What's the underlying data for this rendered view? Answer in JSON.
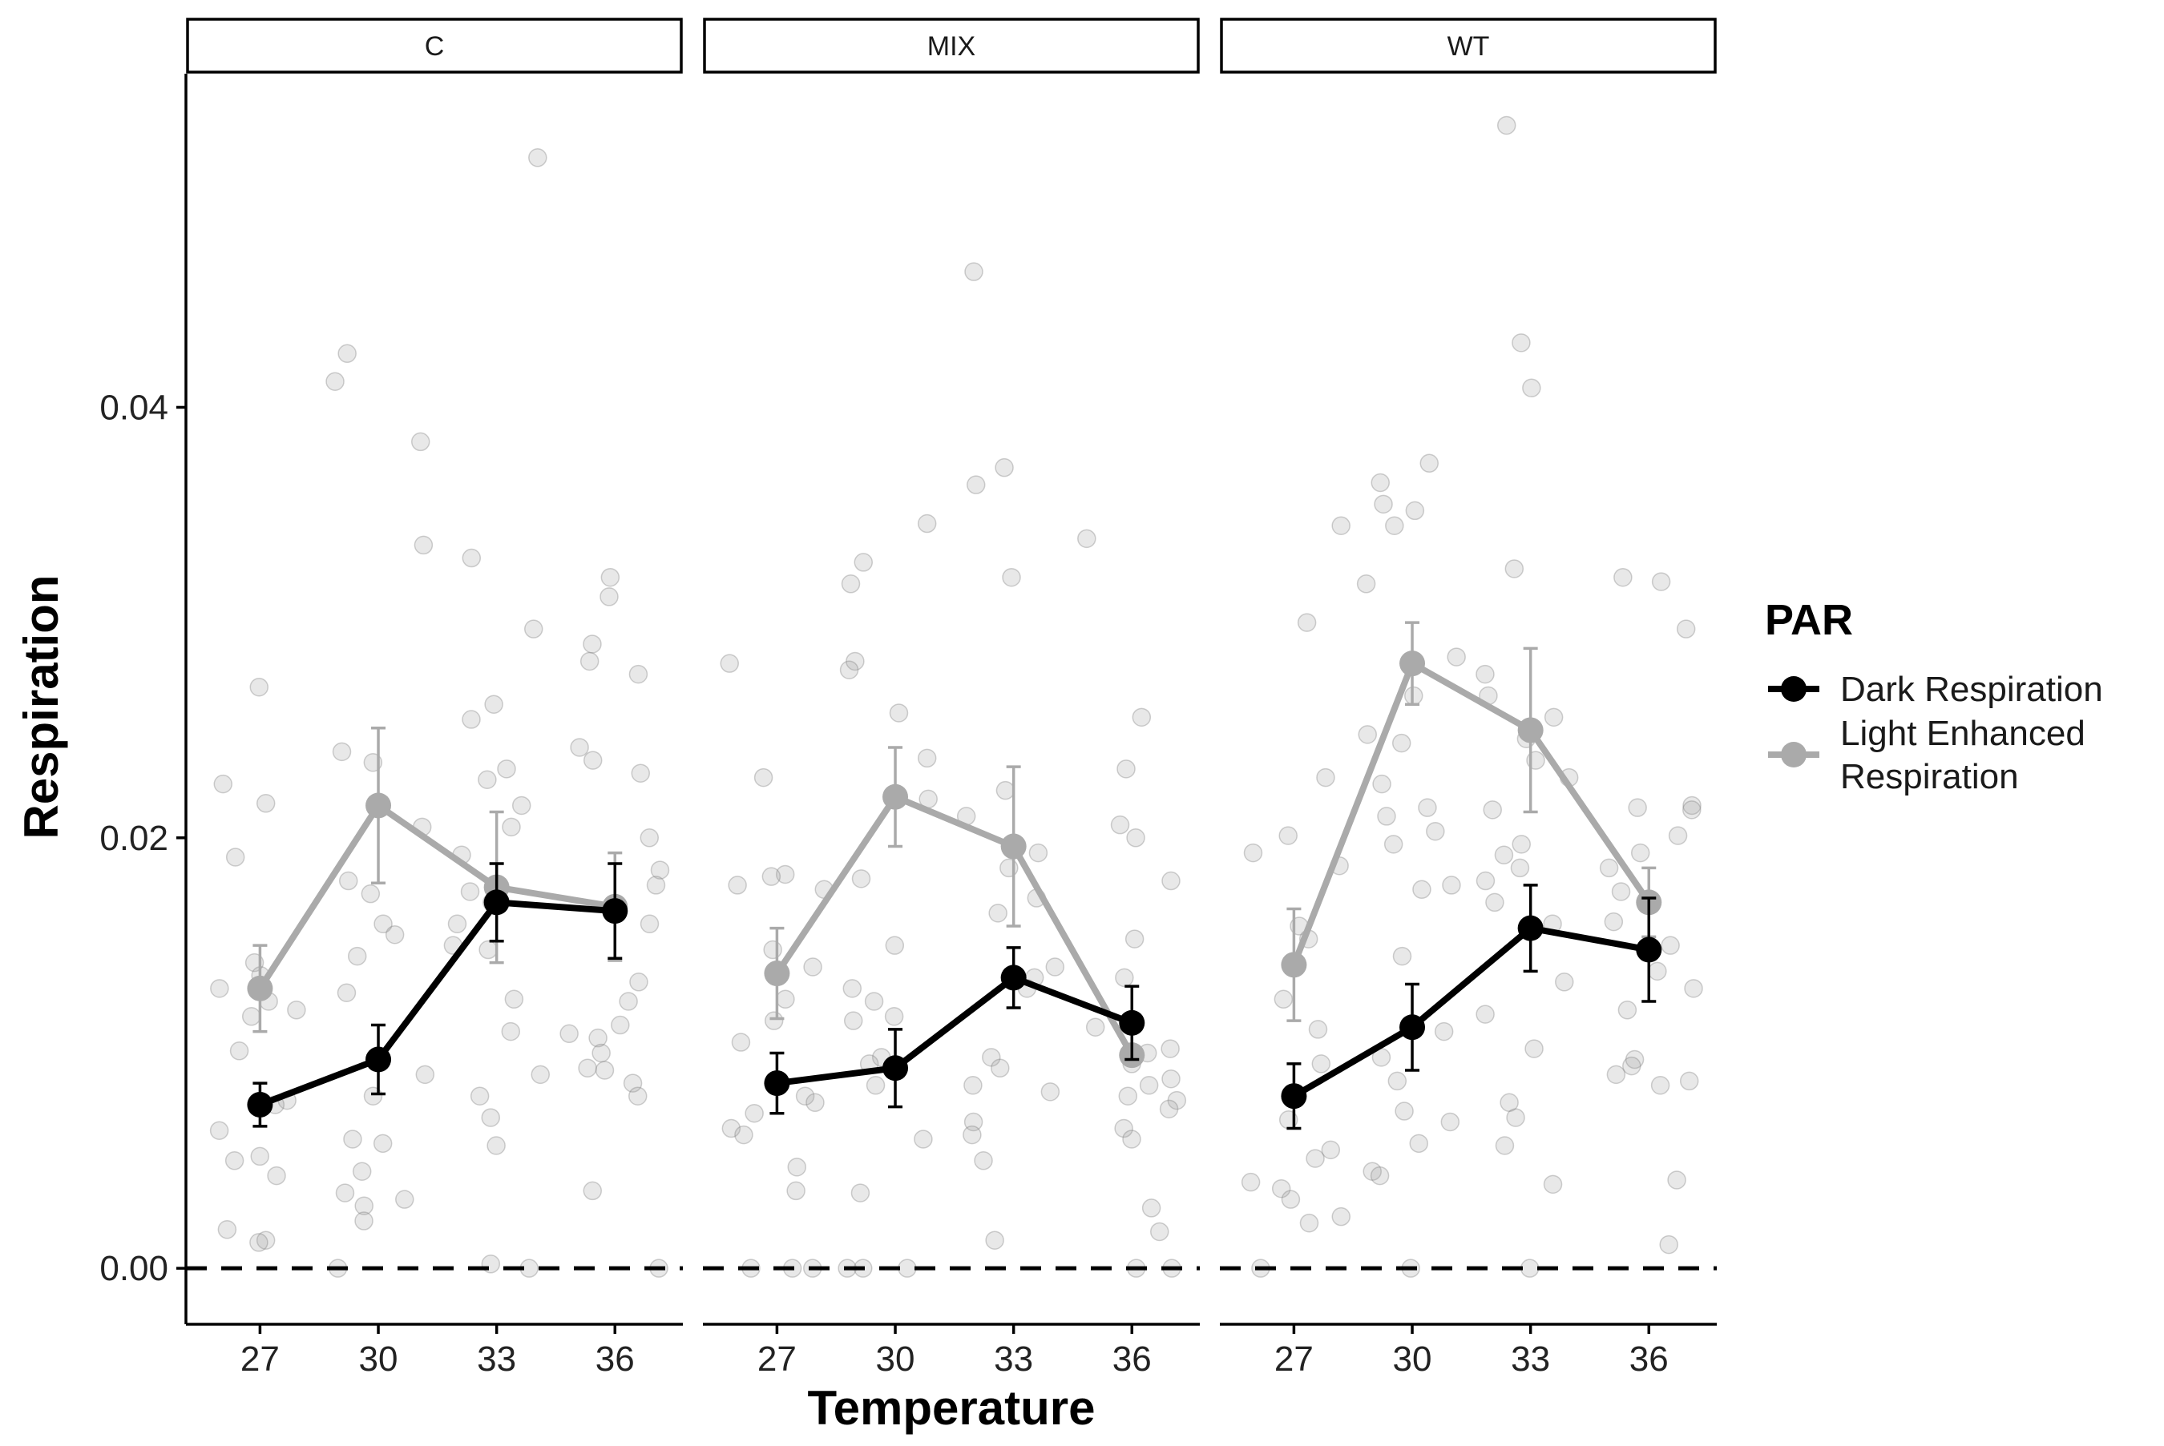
{
  "chart_data": {
    "type": "line",
    "xlabel": "Temperature",
    "ylabel": "Respiration",
    "ylim": [
      -0.0026,
      0.0555
    ],
    "yticks": [
      0.0,
      0.02,
      0.04
    ],
    "ytick_labels": [
      "0.00",
      "0.02",
      "0.04"
    ],
    "x_categories": [
      "27",
      "30",
      "33",
      "36"
    ],
    "reference_line": {
      "y": 0,
      "style": "dashed"
    },
    "legend": {
      "title": "PAR",
      "position": "right"
    },
    "series_styles": [
      {
        "name": "Dark Respiration",
        "color": "#000000"
      },
      {
        "name": "Light Enhanced Respiration",
        "label_lines": [
          "Light Enhanced",
          "Respiration"
        ],
        "color": "#aaaaaa"
      }
    ],
    "panels": [
      {
        "label": "C",
        "series": [
          {
            "name": "Dark Respiration",
            "mean": [
              0.0076,
              0.0097,
              0.017,
              0.0166
            ],
            "error": [
              0.001,
              0.0016,
              0.0018,
              0.0022
            ]
          },
          {
            "name": "Light Enhanced Respiration",
            "mean": [
              0.013,
              0.0215,
              0.0177,
              0.0168
            ],
            "error": [
              0.002,
              0.0036,
              0.0035,
              0.0025
            ]
          }
        ],
        "points": [
          [
            0.027,
            0.0216,
            0.0225,
            0.0191,
            0.0142,
            0.0136,
            0.013,
            0.012,
            0.0124,
            0.0117,
            0.0101,
            0.0078,
            0.0076,
            0.0064,
            0.0052,
            0.005,
            0.0043,
            0.0018,
            0.0013,
            0.0012
          ],
          [
            0.0425,
            0.0412,
            0.0384,
            0.0336,
            0.024,
            0.0235,
            0.0205,
            0.018,
            0.0174,
            0.016,
            0.0155,
            0.0145,
            0.0128,
            0.009,
            0.008,
            0.006,
            0.0058,
            0.0045,
            0.0035,
            0.0032,
            0.0029,
            0.0022,
            0.0
          ],
          [
            0.0516,
            0.033,
            0.0297,
            0.0262,
            0.0255,
            0.0232,
            0.0227,
            0.0215,
            0.0205,
            0.0192,
            0.0175,
            0.017,
            0.016,
            0.015,
            0.0148,
            0.0125,
            0.011,
            0.009,
            0.008,
            0.007,
            0.0057,
            0.0002,
            0.0
          ],
          [
            0.0321,
            0.0312,
            0.029,
            0.0282,
            0.0276,
            0.0242,
            0.0236,
            0.023,
            0.02,
            0.0185,
            0.0178,
            0.016,
            0.0133,
            0.0124,
            0.0113,
            0.0109,
            0.0107,
            0.01,
            0.0093,
            0.0092,
            0.0086,
            0.008,
            0.0036,
            0.0
          ]
        ]
      },
      {
        "label": "MIX",
        "series": [
          {
            "name": "Dark Respiration",
            "mean": [
              0.0086,
              0.0093,
              0.0135,
              0.0114
            ],
            "error": [
              0.0014,
              0.0018,
              0.0014,
              0.0017
            ]
          },
          {
            "name": "Light Enhanced Respiration",
            "mean": [
              0.0137,
              0.0219,
              0.0196,
              0.0099
            ],
            "error": [
              0.0021,
              0.0023,
              0.0037,
              0.0002
            ]
          }
        ],
        "points": [
          [
            0.0281,
            0.0228,
            0.0183,
            0.0182,
            0.0178,
            0.0176,
            0.0148,
            0.014,
            0.0125,
            0.0115,
            0.0105,
            0.008,
            0.0077,
            0.0072,
            0.0065,
            0.0062,
            0.0047,
            0.0036,
            0.0,
            0.0,
            0.0
          ],
          [
            0.0346,
            0.0328,
            0.0318,
            0.0282,
            0.0278,
            0.0258,
            0.0237,
            0.0218,
            0.0181,
            0.015,
            0.013,
            0.0124,
            0.0117,
            0.0115,
            0.0098,
            0.0095,
            0.0085,
            0.006,
            0.0035,
            0.0,
            0.0,
            0.0
          ],
          [
            0.0463,
            0.0372,
            0.0364,
            0.0321,
            0.0222,
            0.021,
            0.0193,
            0.0186,
            0.0172,
            0.0165,
            0.014,
            0.0135,
            0.013,
            0.0098,
            0.0093,
            0.0085,
            0.0082,
            0.0068,
            0.0062,
            0.005,
            0.0013
          ],
          [
            0.0339,
            0.0256,
            0.0232,
            0.0206,
            0.02,
            0.018,
            0.0153,
            0.0135,
            0.0112,
            0.0102,
            0.01,
            0.0095,
            0.0088,
            0.0085,
            0.008,
            0.0078,
            0.0074,
            0.0065,
            0.006,
            0.0028,
            0.0017,
            0.0,
            0.0
          ]
        ]
      },
      {
        "label": "WT",
        "series": [
          {
            "name": "Dark Respiration",
            "mean": [
              0.008,
              0.0112,
              0.0158,
              0.0148
            ],
            "error": [
              0.0015,
              0.002,
              0.002,
              0.0024
            ]
          },
          {
            "name": "Light Enhanced Respiration",
            "mean": [
              0.0141,
              0.0281,
              0.025,
              0.017
            ],
            "error": [
              0.0026,
              0.0019,
              0.0038,
              0.0016
            ]
          }
        ],
        "points": [
          [
            0.0345,
            0.03,
            0.0228,
            0.0201,
            0.0193,
            0.0187,
            0.0159,
            0.0153,
            0.0125,
            0.0111,
            0.0095,
            0.008,
            0.0069,
            0.0055,
            0.0051,
            0.004,
            0.0037,
            0.0032,
            0.0024,
            0.0021,
            0.0
          ],
          [
            0.0374,
            0.0365,
            0.0355,
            0.0352,
            0.0345,
            0.0318,
            0.0284,
            0.0266,
            0.0248,
            0.0244,
            0.0225,
            0.0214,
            0.021,
            0.0203,
            0.0197,
            0.0178,
            0.0176,
            0.0145,
            0.011,
            0.0098,
            0.0087,
            0.0073,
            0.0068,
            0.0058,
            0.0045,
            0.0043,
            0.0
          ],
          [
            0.0531,
            0.043,
            0.0409,
            0.0325,
            0.0276,
            0.0266,
            0.0256,
            0.0246,
            0.0236,
            0.0228,
            0.0213,
            0.0197,
            0.0192,
            0.0186,
            0.018,
            0.017,
            0.016,
            0.0133,
            0.0118,
            0.0102,
            0.0077,
            0.007,
            0.0057,
            0.0039,
            0.0
          ],
          [
            0.0321,
            0.0319,
            0.0297,
            0.0215,
            0.0214,
            0.0213,
            0.0201,
            0.0193,
            0.0186,
            0.0175,
            0.0161,
            0.015,
            0.0138,
            0.013,
            0.012,
            0.0097,
            0.0094,
            0.009,
            0.0087,
            0.0085,
            0.0041,
            0.0011
          ]
        ]
      }
    ]
  }
}
